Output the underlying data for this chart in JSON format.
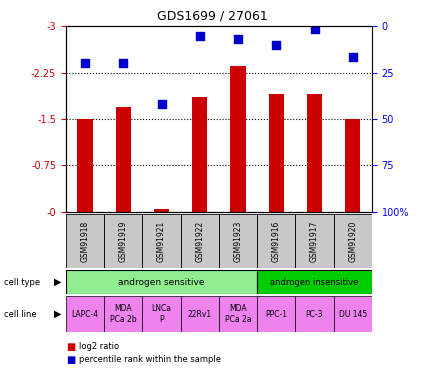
{
  "title": "GDS1699 / 27061",
  "samples": [
    "GSM91918",
    "GSM91919",
    "GSM91921",
    "GSM91922",
    "GSM91923",
    "GSM91916",
    "GSM91917",
    "GSM91920"
  ],
  "log2_ratio": [
    -1.5,
    -1.7,
    -0.05,
    -1.85,
    -2.35,
    -1.9,
    -1.9,
    -1.5
  ],
  "percentile_rank_log2": [
    -2.4,
    -2.4,
    -1.75,
    -2.85,
    -2.8,
    -2.7,
    -2.95,
    -2.5
  ],
  "bar_color": "#cc0000",
  "blue_color": "#0000cc",
  "left_yticks": [
    0,
    -0.75,
    -1.5,
    -2.25,
    -3
  ],
  "left_yticklabels": [
    "-0",
    "-0.75",
    "-1.5",
    "-2.25",
    "-3"
  ],
  "right_yticks": [
    0,
    25,
    50,
    75,
    100
  ],
  "right_yticklabels": [
    "0",
    "25",
    "50",
    "75",
    "100%"
  ],
  "cell_lines": [
    "LAPC-4",
    "MDA\nPCa 2b",
    "LNCa\nP",
    "22Rv1",
    "MDA\nPCa 2a",
    "PPC-1",
    "PC-3",
    "DU 145"
  ],
  "cell_line_color": "#ee82ee",
  "label_color_left": "#cc0000",
  "label_color_right": "#0000ff",
  "sensitive_color": "#90ee90",
  "insensitive_color": "#00cc00",
  "sample_box_color": "#c8c8c8"
}
